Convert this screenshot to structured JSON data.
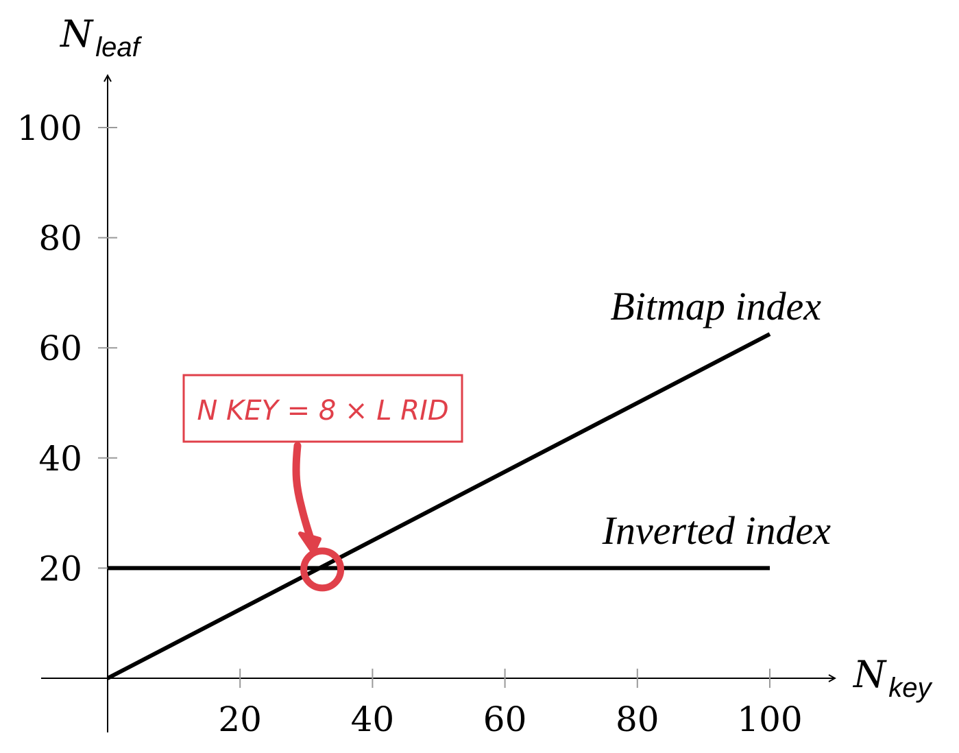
{
  "chart_data": {
    "type": "line",
    "x_axis": {
      "var": "N",
      "sub": "key",
      "ticks": [
        20,
        40,
        60,
        80,
        100
      ],
      "range": [
        -10,
        110
      ]
    },
    "y_axis": {
      "var": "N",
      "sub": "leaf",
      "ticks": [
        100,
        80,
        60,
        40,
        20
      ],
      "range": [
        -10,
        110
      ]
    },
    "series": [
      {
        "name": "Bitmap index",
        "x": [
          0,
          100
        ],
        "y": [
          0,
          62.5
        ]
      },
      {
        "name": "Inverted index",
        "x": [
          0,
          100
        ],
        "y": [
          20,
          20
        ]
      }
    ],
    "grid": false,
    "annotation": {
      "text": "N KEY = 8 × L RID",
      "points_to": {
        "x": 32,
        "y": 20
      },
      "color": "#e0404a"
    }
  }
}
